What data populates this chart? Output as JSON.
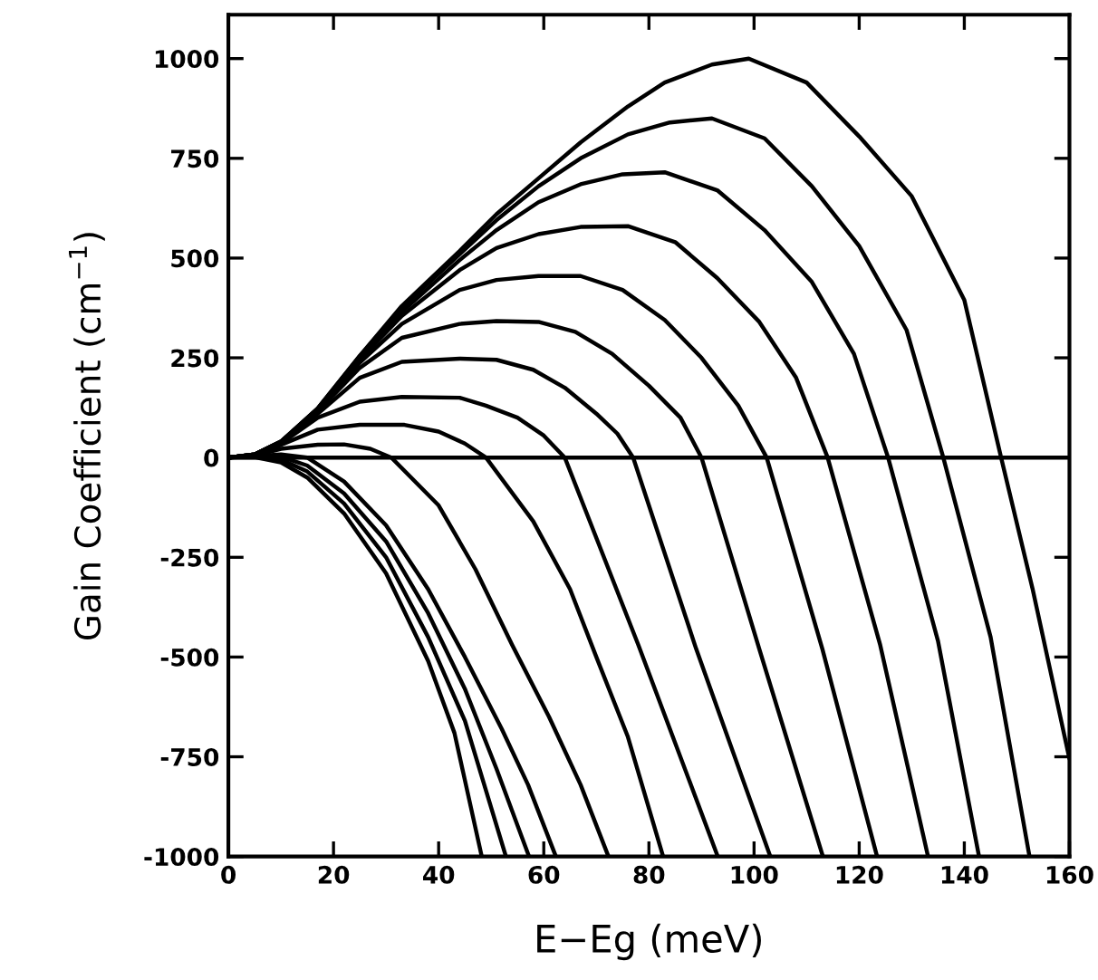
{
  "chart_data": {
    "type": "line",
    "xlabel": "E−Eg (meV)",
    "ylabel": "Gain Coefficient (cm$^{−1}$)",
    "xlim": [
      0,
      160
    ],
    "xticks": [
      0,
      20,
      40,
      60,
      80,
      100,
      120,
      140,
      160
    ],
    "ylim": [
      -1000,
      1110
    ],
    "yticks": [
      -1000,
      -750,
      -500,
      -250,
      0,
      250,
      500,
      750,
      1000
    ],
    "grid": false,
    "legend": false,
    "marker": "none",
    "line_style": "solid",
    "ref_lines": [
      {
        "axis": "y",
        "value": 0,
        "color": "#000000",
        "line_style": "solid"
      }
    ],
    "series": [
      {
        "color": "#000000",
        "x": [
          0,
          5,
          10,
          17,
          25,
          33,
          44,
          51,
          59,
          67,
          76,
          83,
          92,
          99,
          110,
          120,
          130,
          140,
          147,
          153,
          160
        ],
        "values": [
          0,
          8,
          40,
          123,
          255,
          380,
          518,
          610,
          700,
          790,
          880,
          940,
          985,
          1000,
          940,
          805,
          655,
          395,
          0,
          -330,
          -755
        ]
      },
      {
        "color": "#000000",
        "x": [
          0,
          5,
          10,
          17,
          25,
          33,
          44,
          51,
          59,
          67,
          76,
          84,
          92,
          102,
          111,
          120,
          129,
          136,
          145,
          152.4
        ],
        "values": [
          0,
          8,
          40,
          123,
          255,
          375,
          510,
          595,
          680,
          750,
          810,
          840,
          850,
          800,
          680,
          530,
          320,
          0,
          -450,
          -1000
        ]
      },
      {
        "color": "#000000",
        "x": [
          0,
          5,
          10,
          17,
          25,
          33,
          44,
          51,
          59,
          67,
          75,
          83,
          93,
          102,
          111,
          119,
          125.5,
          135,
          142.8
        ],
        "values": [
          0,
          8,
          40,
          122,
          250,
          365,
          495,
          570,
          640,
          685,
          710,
          715,
          670,
          570,
          440,
          260,
          0,
          -460,
          -1000
        ]
      },
      {
        "color": "#000000",
        "x": [
          0,
          5,
          10,
          17,
          25,
          33,
          44,
          51,
          59,
          67,
          76,
          85,
          93,
          101,
          108,
          114,
          124,
          133.1
        ],
        "values": [
          0,
          8,
          40,
          120,
          245,
          355,
          470,
          525,
          560,
          578,
          580,
          540,
          450,
          340,
          200,
          0,
          -470,
          -1000
        ]
      },
      {
        "color": "#000000",
        "x": [
          0,
          5,
          10,
          17,
          25,
          33,
          44,
          51,
          59,
          67,
          75,
          83,
          90,
          97,
          102.4,
          113,
          123.4
        ],
        "values": [
          0,
          8,
          39,
          118,
          238,
          335,
          420,
          445,
          455,
          455,
          420,
          345,
          250,
          130,
          0,
          -480,
          -1000
        ]
      },
      {
        "color": "#000000",
        "x": [
          0,
          5,
          10,
          17,
          25,
          33,
          44,
          51,
          59,
          66,
          73,
          80,
          86,
          90,
          101,
          113.1
        ],
        "values": [
          0,
          8,
          38,
          115,
          225,
          300,
          335,
          342,
          340,
          315,
          260,
          180,
          100,
          0,
          -480,
          -1000
        ]
      },
      {
        "color": "#000000",
        "x": [
          0,
          5,
          10,
          17,
          25,
          33,
          44,
          51,
          58,
          64,
          70,
          74,
          77,
          89,
          103.1
        ],
        "values": [
          0,
          7,
          37,
          110,
          200,
          240,
          248,
          245,
          220,
          175,
          110,
          60,
          0,
          -480,
          -1000
        ]
      },
      {
        "color": "#000000",
        "x": [
          0,
          5,
          10,
          17,
          25,
          33,
          44,
          49,
          55,
          60,
          64,
          78,
          93.1
        ],
        "values": [
          0,
          7,
          35,
          100,
          140,
          152,
          150,
          130,
          100,
          55,
          0,
          -470,
          -1000
        ]
      },
      {
        "color": "#000000",
        "x": [
          0,
          5,
          10,
          17,
          25,
          33.5,
          40,
          45,
          49,
          58,
          65,
          70,
          76,
          82.7
        ],
        "values": [
          0,
          6,
          32,
          70,
          82,
          82,
          65,
          35,
          0,
          -160,
          -330,
          -500,
          -700,
          -1000
        ]
      },
      {
        "color": "#000000",
        "x": [
          0,
          5,
          10,
          17,
          22,
          27,
          31,
          40,
          47,
          54,
          61,
          67,
          72.3
        ],
        "values": [
          0,
          5,
          22,
          32,
          33,
          22,
          0,
          -120,
          -280,
          -470,
          -650,
          -820,
          -1000
        ]
      },
      {
        "color": "#000000",
        "x": [
          0,
          5,
          10,
          15,
          22,
          30,
          38,
          45,
          52,
          57,
          62.3
        ],
        "values": [
          0,
          4,
          8,
          0,
          -60,
          -170,
          -330,
          -500,
          -680,
          -820,
          -1000
        ]
      },
      {
        "color": "#000000",
        "x": [
          0,
          5,
          10,
          15,
          22,
          30,
          38,
          45,
          51,
          57.2
        ],
        "values": [
          0,
          3,
          2,
          -20,
          -90,
          -210,
          -390,
          -580,
          -780,
          -1000
        ]
      },
      {
        "color": "#000000",
        "x": [
          0,
          5,
          10,
          15,
          22,
          30,
          38,
          45,
          52.8
        ],
        "values": [
          0,
          2,
          -5,
          -35,
          -115,
          -250,
          -450,
          -660,
          -1000
        ]
      },
      {
        "color": "#000000",
        "x": [
          0,
          5,
          10,
          15,
          22,
          30,
          38,
          43,
          48.2
        ],
        "values": [
          0,
          1,
          -12,
          -50,
          -140,
          -290,
          -510,
          -690,
          -1000
        ]
      }
    ]
  }
}
